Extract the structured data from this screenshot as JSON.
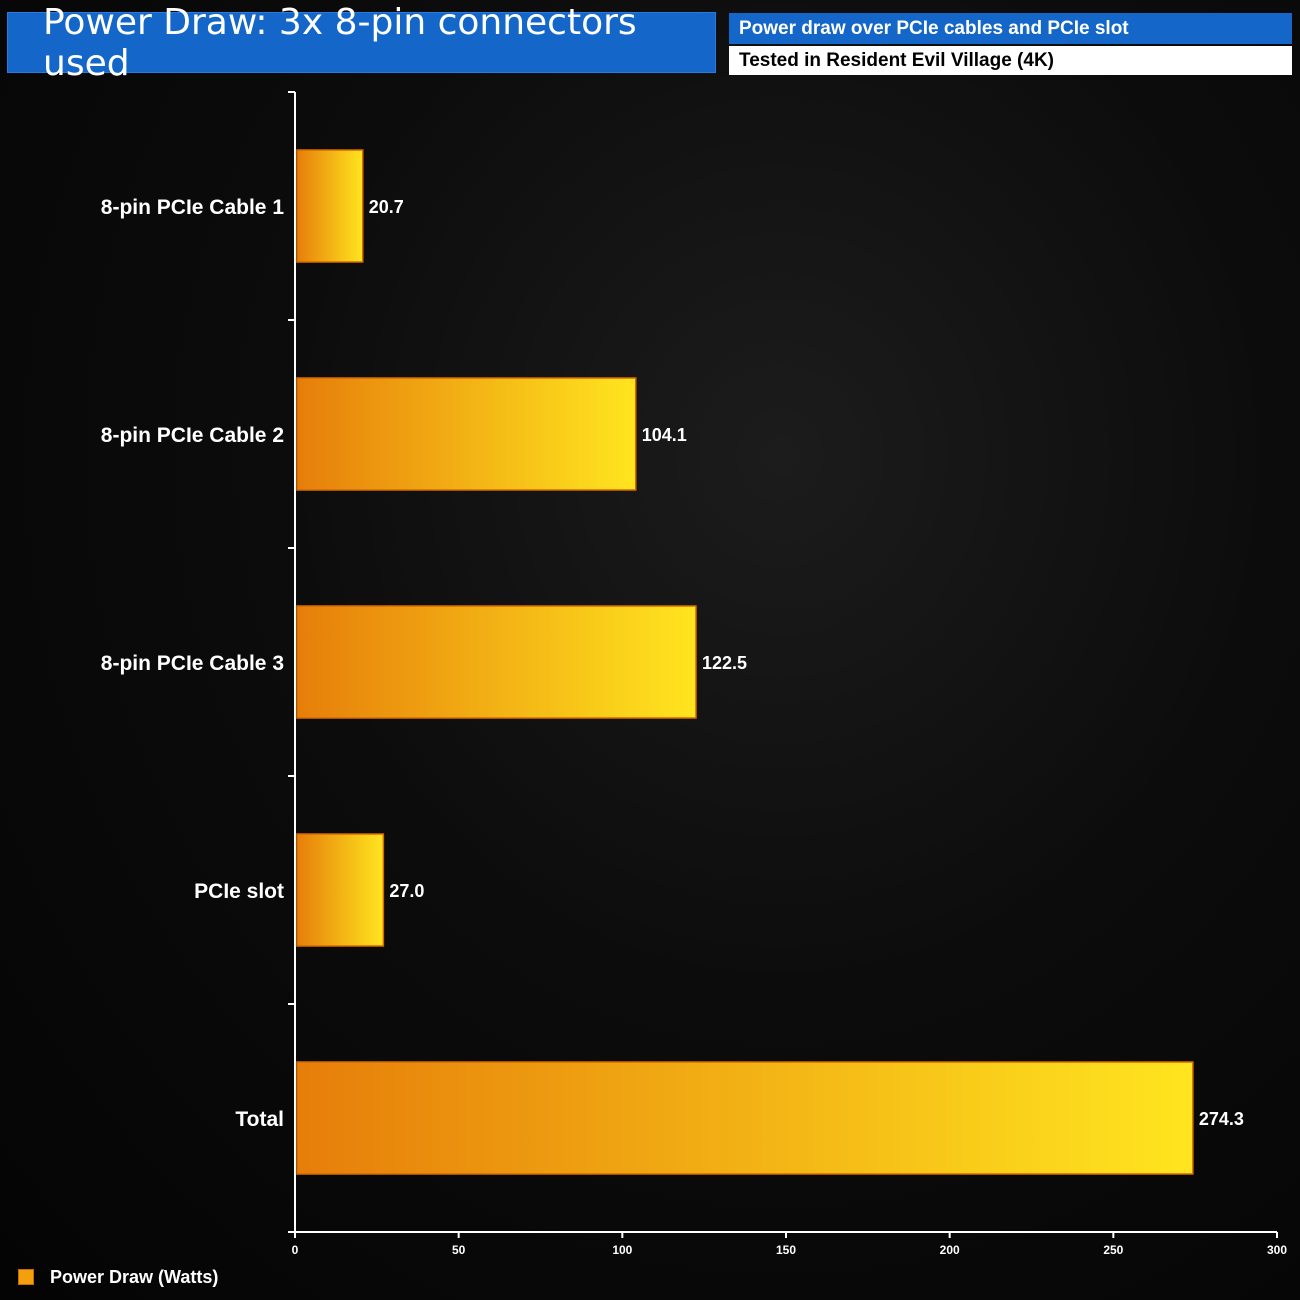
{
  "header": {
    "title": "Power Draw: 3x 8-pin connectors used",
    "subtitle_line1": "Power draw over PCIe cables and PCIe slot",
    "subtitle_line2": "Tested in Resident Evil Village (4K)"
  },
  "legend": {
    "label": "Power Draw (Watts)"
  },
  "colors": {
    "bar_gradient_start": "#e67e0a",
    "bar_gradient_end": "#ffe51f",
    "bar_outline": "#d96a00",
    "title_bg": "#1467c8",
    "axis": "#ffffff"
  },
  "chart_data": {
    "type": "bar",
    "orientation": "horizontal",
    "categories": [
      "8-pin PCIe Cable 1",
      "8-pin PCIe Cable 2",
      "8-pin PCIe Cable 3",
      "PCIe slot",
      "Total"
    ],
    "series": [
      {
        "name": "Power Draw (Watts)",
        "values": [
          20.7,
          104.1,
          122.5,
          27.0,
          274.3
        ]
      }
    ],
    "data_labels": [
      "20.7",
      "104.1",
      "122.5",
      "27.0",
      "274.3"
    ],
    "xlim": [
      0,
      300
    ],
    "xticks": [
      0,
      50,
      100,
      150,
      200,
      250,
      300
    ],
    "title": "Power Draw: 3x 8-pin connectors used",
    "xlabel": "",
    "ylabel": "",
    "legend_position": "bottom-left",
    "grid": false
  }
}
